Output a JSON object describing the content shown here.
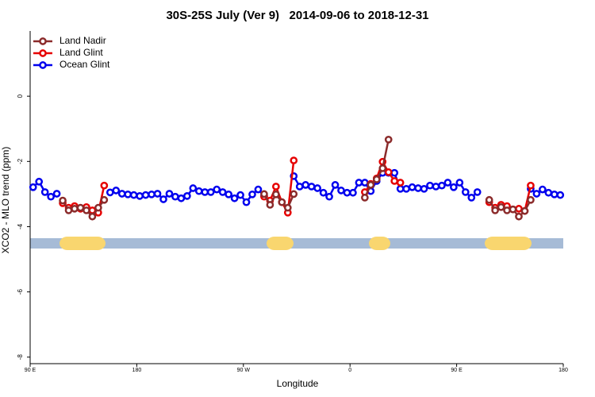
{
  "chart_data": {
    "type": "line",
    "title": "30S-25S July (Ver 9)   2014-09-06 to 2018-12-31",
    "x_label": "Longitude",
    "y_label": "XCO2 - MLO trend (ppm)",
    "xlim": [
      90,
      540
    ],
    "ylim": [
      -8.2,
      2
    ],
    "xticks": [
      {
        "value": 90,
        "label": "90 E"
      },
      180,
      {
        "value": 270,
        "label": "90 W"
      },
      {
        "value": 360,
        "label": "0"
      },
      {
        "value": 450,
        "label": "90 E"
      },
      {
        "value": 540,
        "label": "180"
      }
    ],
    "yticks": [
      0,
      -2,
      -4,
      -6,
      -8
    ],
    "legend": "top-left",
    "x": [
      92.5,
      97.5,
      102.5,
      107.5,
      112.5,
      117.5,
      122.5,
      127.5,
      132.5,
      137.5,
      142.5,
      147.5,
      152.5,
      157.5,
      162.5,
      167.5,
      172.5,
      177.5,
      182.5,
      187.5,
      192.5,
      197.5,
      202.5,
      207.5,
      212.5,
      217.5,
      222.5,
      227.5,
      232.5,
      237.5,
      242.5,
      247.5,
      252.5,
      257.5,
      262.5,
      267.5,
      272.5,
      277.5,
      282.5,
      287.5,
      292.5,
      297.5,
      302.5,
      307.5,
      312.5,
      317.5,
      322.5,
      327.5,
      332.5,
      337.5,
      342.5,
      347.5,
      352.5,
      357.5,
      362.5,
      367.5,
      372.5,
      377.5,
      382.5,
      387.5,
      392.5,
      397.5,
      402.5,
      407.5,
      412.5,
      417.5,
      422.5,
      427.5,
      432.5,
      437.5,
      442.5,
      447.5,
      452.5,
      457.5,
      462.5,
      467.5,
      472.5,
      477.5,
      482.5,
      487.5,
      492.5,
      497.5,
      502.5,
      507.5,
      512.5,
      517.5,
      522.5,
      527.5,
      532.5,
      537.5
    ],
    "series": [
      {
        "name": "Land Nadir",
        "color": "#8b2b2b",
        "values": [
          null,
          null,
          null,
          null,
          null,
          -3.2,
          -3.5,
          -3.45,
          -3.42,
          -3.5,
          -3.69,
          -3.42,
          -3.18,
          null,
          null,
          null,
          null,
          null,
          null,
          null,
          null,
          null,
          null,
          null,
          null,
          null,
          null,
          null,
          null,
          null,
          null,
          null,
          null,
          null,
          null,
          null,
          null,
          null,
          null,
          -3.0,
          -3.33,
          -3.01,
          -3.25,
          -3.42,
          -3.0,
          null,
          null,
          null,
          null,
          null,
          null,
          null,
          null,
          null,
          null,
          null,
          -3.11,
          -2.72,
          -2.55,
          -2.21,
          -1.33,
          null,
          null,
          null,
          null,
          null,
          null,
          null,
          null,
          null,
          null,
          null,
          null,
          null,
          null,
          null,
          null,
          -3.18,
          -3.5,
          -3.4,
          -3.5,
          -3.47,
          -3.69,
          -3.52,
          -3.18,
          null,
          null,
          null,
          null,
          null
        ]
      },
      {
        "name": "Land Glint",
        "color": "#e60000",
        "values": [
          null,
          null,
          null,
          null,
          null,
          -3.28,
          -3.42,
          -3.37,
          -3.45,
          -3.4,
          -3.5,
          -3.57,
          -2.74,
          null,
          null,
          null,
          null,
          null,
          null,
          null,
          null,
          null,
          null,
          null,
          null,
          null,
          null,
          null,
          null,
          null,
          null,
          null,
          null,
          null,
          null,
          null,
          null,
          null,
          null,
          -3.08,
          -3.2,
          -2.77,
          -3.25,
          -3.57,
          -1.97,
          null,
          null,
          null,
          null,
          null,
          null,
          null,
          null,
          null,
          null,
          null,
          -2.94,
          -2.69,
          -2.52,
          -2.01,
          -2.33,
          -2.6,
          -2.65,
          null,
          null,
          null,
          null,
          null,
          null,
          null,
          null,
          null,
          null,
          null,
          null,
          null,
          null,
          -3.25,
          -3.42,
          -3.33,
          -3.37,
          -3.47,
          -3.45,
          -3.52,
          -2.74,
          null,
          null,
          null,
          null,
          null
        ]
      },
      {
        "name": "Ocean Glint",
        "color": "#0000ee",
        "values": [
          -2.79,
          -2.62,
          -2.94,
          -3.08,
          -2.99,
          null,
          null,
          null,
          null,
          null,
          null,
          null,
          null,
          -2.95,
          -2.89,
          -2.99,
          -3.01,
          -3.03,
          -3.06,
          -3.03,
          -3.01,
          -2.99,
          -3.16,
          -2.99,
          -3.08,
          -3.13,
          -3.06,
          -2.82,
          -2.91,
          -2.94,
          -2.94,
          -2.86,
          -2.94,
          -3.01,
          -3.13,
          -3.03,
          -3.25,
          -3.01,
          -2.86,
          -3.06,
          null,
          null,
          null,
          null,
          -2.45,
          -2.77,
          -2.72,
          -2.77,
          -2.82,
          -2.96,
          -3.08,
          -2.72,
          -2.89,
          -2.96,
          -2.96,
          -2.65,
          -2.65,
          -2.91,
          -2.6,
          -2.35,
          -2.35,
          -2.35,
          -2.84,
          -2.84,
          -2.79,
          -2.82,
          -2.84,
          -2.74,
          -2.77,
          -2.74,
          -2.65,
          -2.79,
          -2.65,
          -2.94,
          -3.11,
          -2.94,
          null,
          null,
          null,
          null,
          null,
          null,
          null,
          null,
          -2.84,
          -2.99,
          -2.86,
          -2.96,
          -3.01,
          -3.03
        ]
      }
    ]
  }
}
